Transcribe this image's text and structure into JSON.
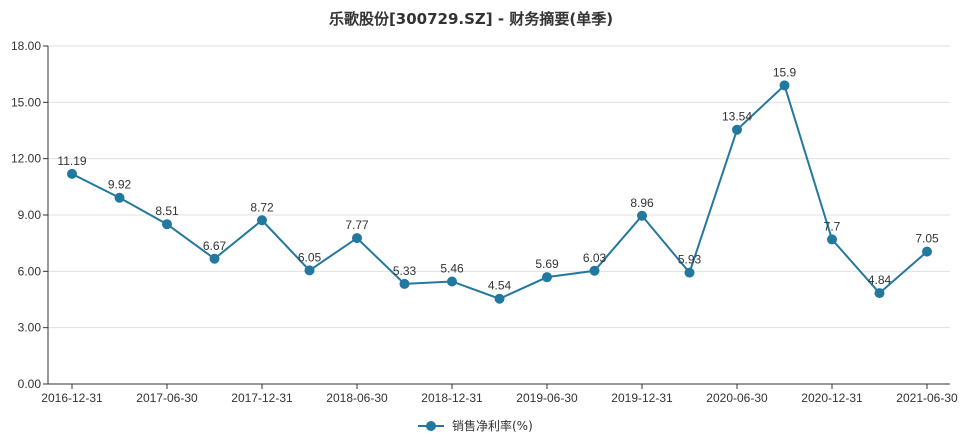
{
  "chart_data": {
    "type": "line",
    "title": "乐歌股份[300729.SZ] - 财务摘要(单季)",
    "x": [
      "2016-12-31",
      "2017-03-31",
      "2017-06-30",
      "2017-09-30",
      "2017-12-31",
      "2018-03-31",
      "2018-06-30",
      "2018-09-30",
      "2018-12-31",
      "2019-03-31",
      "2019-06-30",
      "2019-09-30",
      "2019-12-31",
      "2020-03-31",
      "2020-06-30",
      "2020-09-30",
      "2020-12-31",
      "2021-03-31",
      "2021-06-30"
    ],
    "x_tick_labels": [
      "2016-12-31",
      "2017-06-30",
      "2017-12-31",
      "2018-06-30",
      "2018-12-31",
      "2019-06-30",
      "2019-12-31",
      "2020-06-30",
      "2020-12-31",
      "2021-06-30"
    ],
    "series": [
      {
        "name": "销售净利率(%)",
        "color": "#22789e",
        "values": [
          11.19,
          9.92,
          8.51,
          6.67,
          8.72,
          6.05,
          7.77,
          5.33,
          5.46,
          4.54,
          5.69,
          6.03,
          8.96,
          5.93,
          13.54,
          15.9,
          7.7,
          4.84,
          7.05
        ],
        "labels": [
          "11.19",
          "9.92",
          "8.51",
          "6.67",
          "8.72",
          "6.05",
          "7.77",
          "5.33",
          "5.46",
          "4.54",
          "5.69",
          "6.03",
          "8.96",
          "5.93",
          "13.54",
          "15.9",
          "7.7",
          "4.84",
          "7.05"
        ]
      }
    ],
    "ylim": [
      0,
      18
    ],
    "y_ticks": [
      "0.00",
      "3.00",
      "6.00",
      "9.00",
      "12.00",
      "15.00",
      "18.00"
    ],
    "y_tick_values": [
      0,
      3,
      6,
      9,
      12,
      15,
      18
    ],
    "grid": "horizontal",
    "legend_position": "bottom-center"
  }
}
